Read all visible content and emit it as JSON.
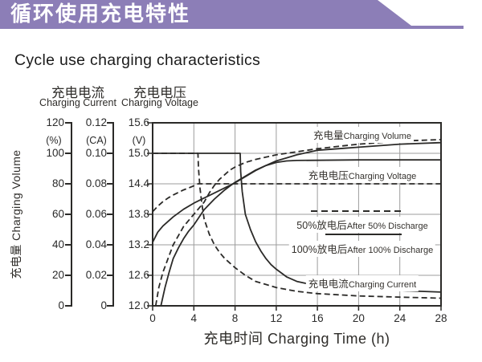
{
  "banner": {
    "title": "循环使用充电特性",
    "color": "#8c7eb7"
  },
  "subtitle": "Cycle use charging characteristics",
  "headers": {
    "current": {
      "zh": "充电电流",
      "en": "Charging Current"
    },
    "voltage": {
      "zh": "充电电压",
      "en": "Charging Voltage"
    }
  },
  "side_label": {
    "zh": "充电量",
    "en": "Charging Volume"
  },
  "y_scales": [
    {
      "id": "volume",
      "unit": "(%)",
      "ticks": [
        "120",
        "100",
        "80",
        "60",
        "40",
        "20",
        "0"
      ]
    },
    {
      "id": "current",
      "unit": "(CA)",
      "ticks": [
        "0.12",
        "0.10",
        "0.08",
        "0.06",
        "0.04",
        "0.02",
        "0"
      ]
    },
    {
      "id": "voltage",
      "unit": "(V)",
      "ticks": [
        "15.6",
        "15.0",
        "14.4",
        "13.8",
        "13.2",
        "12.6",
        "12.0"
      ]
    }
  ],
  "x_axis": {
    "title_zh": "充电时间",
    "title_en": "Charging Time (h)",
    "labels": [
      "0",
      "4",
      "8",
      "12",
      "16",
      "20",
      "24",
      "28"
    ],
    "tick_values": [
      0,
      4,
      8,
      12,
      16,
      20,
      24,
      28
    ]
  },
  "plot_labels": {
    "volume": {
      "zh": "充电量",
      "en": "Charging Volume"
    },
    "voltage": {
      "zh": "充电电压",
      "en": "Charging Voltage"
    },
    "after50": {
      "zh": "50%放电后",
      "en": "After 50% Discharge"
    },
    "after100": {
      "zh": "100%放电后",
      "en": "After 100% Discharge"
    },
    "current": {
      "zh": "充电电流",
      "en": "Charging Current"
    }
  },
  "chart_data": {
    "type": "line",
    "title": "Cycle use charging characteristics",
    "xlabel": "充电时间 Charging Time (h)",
    "x_range": [
      0,
      28
    ],
    "x_gridlines": [
      4,
      8,
      12,
      16,
      20,
      24
    ],
    "y_axes": {
      "volume": {
        "label": "充电量 Charging Volume",
        "unit": "%",
        "range": [
          0,
          120
        ]
      },
      "current": {
        "label": "充电电流 Charging Current",
        "unit": "CA",
        "range": [
          0,
          0.12
        ]
      },
      "voltage": {
        "label": "充电电压 Charging Voltage",
        "unit": "V",
        "range": [
          12.0,
          15.6
        ]
      }
    },
    "y_gridlines_voltage": [
      15.0,
      14.4,
      13.8,
      13.2,
      12.6
    ],
    "legend": [
      {
        "style": "dashed",
        "label": "50%放电后 After 50% Discharge"
      },
      {
        "style": "solid",
        "label": "100%放电后 After 100% Discharge"
      }
    ],
    "series": [
      {
        "name": "charging-volume-after-50-discharge",
        "axis": "volume",
        "style": "dashed",
        "points": [
          [
            0.3,
            0
          ],
          [
            0.6,
            12
          ],
          [
            1,
            22
          ],
          [
            1.5,
            31
          ],
          [
            2,
            40
          ],
          [
            2.5,
            46
          ],
          [
            3,
            52
          ],
          [
            3.5,
            56
          ],
          [
            4,
            60
          ],
          [
            4.5,
            64
          ],
          [
            5,
            68
          ],
          [
            5.5,
            74
          ],
          [
            6,
            79
          ],
          [
            6.5,
            83
          ],
          [
            7,
            86
          ],
          [
            7.5,
            89
          ],
          [
            8,
            91
          ],
          [
            9,
            94
          ],
          [
            10,
            96
          ],
          [
            11,
            97.5
          ],
          [
            12,
            99
          ],
          [
            14,
            101
          ],
          [
            16,
            103
          ],
          [
            18,
            104.5
          ],
          [
            20,
            106
          ],
          [
            24,
            108
          ],
          [
            28,
            109
          ]
        ]
      },
      {
        "name": "charging-volume-after-100-discharge",
        "axis": "volume",
        "style": "solid",
        "points": [
          [
            0.8,
            0
          ],
          [
            1.2,
            12
          ],
          [
            1.6,
            22
          ],
          [
            2,
            31
          ],
          [
            2.5,
            38
          ],
          [
            3,
            44
          ],
          [
            3.5,
            49
          ],
          [
            4,
            53
          ],
          [
            4.5,
            58
          ],
          [
            5,
            63
          ],
          [
            5.5,
            66.5
          ],
          [
            6,
            70
          ],
          [
            6.5,
            73
          ],
          [
            7,
            76
          ],
          [
            7.5,
            78.5
          ],
          [
            8,
            81
          ],
          [
            9,
            85
          ],
          [
            10,
            89
          ],
          [
            11,
            92
          ],
          [
            12,
            95
          ],
          [
            13,
            97
          ],
          [
            14,
            99
          ],
          [
            16,
            102
          ],
          [
            18,
            103
          ],
          [
            20,
            104
          ],
          [
            24,
            106
          ],
          [
            28,
            107
          ]
        ]
      },
      {
        "name": "charging-voltage-after-50-discharge",
        "axis": "voltage",
        "style": "dashed",
        "points": [
          [
            0,
            13.85
          ],
          [
            0.5,
            13.96
          ],
          [
            1,
            14.05
          ],
          [
            1.5,
            14.12
          ],
          [
            2,
            14.18
          ],
          [
            2.5,
            14.23
          ],
          [
            3,
            14.28
          ],
          [
            3.5,
            14.32
          ],
          [
            4,
            14.36
          ],
          [
            4.4,
            14.4
          ],
          [
            10,
            14.4
          ],
          [
            20,
            14.4
          ],
          [
            28,
            14.4
          ]
        ]
      },
      {
        "name": "charging-voltage-after-100-discharge",
        "axis": "voltage",
        "style": "solid",
        "points": [
          [
            0,
            13.25
          ],
          [
            0.5,
            13.45
          ],
          [
            1,
            13.57
          ],
          [
            2,
            13.75
          ],
          [
            3,
            13.9
          ],
          [
            4,
            14.02
          ],
          [
            5,
            14.12
          ],
          [
            6,
            14.22
          ],
          [
            7,
            14.32
          ],
          [
            8,
            14.42
          ],
          [
            9,
            14.54
          ],
          [
            10,
            14.66
          ],
          [
            11,
            14.76
          ],
          [
            12,
            14.82
          ],
          [
            13,
            14.85
          ],
          [
            14,
            14.86
          ],
          [
            20,
            14.87
          ],
          [
            28,
            14.87
          ]
        ]
      },
      {
        "name": "charging-current-after-50-discharge",
        "axis": "current",
        "style": "dashed",
        "points": [
          [
            0,
            0.1
          ],
          [
            4.4,
            0.1
          ],
          [
            4.45,
            0.09
          ],
          [
            4.6,
            0.077
          ],
          [
            4.8,
            0.066
          ],
          [
            5,
            0.057
          ],
          [
            5.5,
            0.047
          ],
          [
            6,
            0.04
          ],
          [
            6.5,
            0.035
          ],
          [
            7,
            0.031
          ],
          [
            7.5,
            0.028
          ],
          [
            8,
            0.025
          ],
          [
            9,
            0.02
          ],
          [
            10,
            0.016
          ],
          [
            11,
            0.014
          ],
          [
            12,
            0.012
          ],
          [
            14,
            0.0095
          ],
          [
            16,
            0.008
          ],
          [
            20,
            0.0065
          ],
          [
            24,
            0.0057
          ],
          [
            28,
            0.005
          ]
        ]
      },
      {
        "name": "charging-current-after-100-discharge",
        "axis": "current",
        "style": "solid",
        "points": [
          [
            0,
            0.1
          ],
          [
            8.5,
            0.1
          ],
          [
            8.55,
            0.088
          ],
          [
            8.7,
            0.075
          ],
          [
            9,
            0.06
          ],
          [
            9.5,
            0.05
          ],
          [
            10,
            0.042
          ],
          [
            10.5,
            0.036
          ],
          [
            11,
            0.031
          ],
          [
            11.5,
            0.027
          ],
          [
            12,
            0.024
          ],
          [
            13,
            0.019
          ],
          [
            14,
            0.016
          ],
          [
            15,
            0.0145
          ],
          [
            16,
            0.013
          ],
          [
            18,
            0.012
          ],
          [
            20,
            0.011
          ],
          [
            24,
            0.01
          ],
          [
            28,
            0.009
          ]
        ]
      }
    ]
  }
}
